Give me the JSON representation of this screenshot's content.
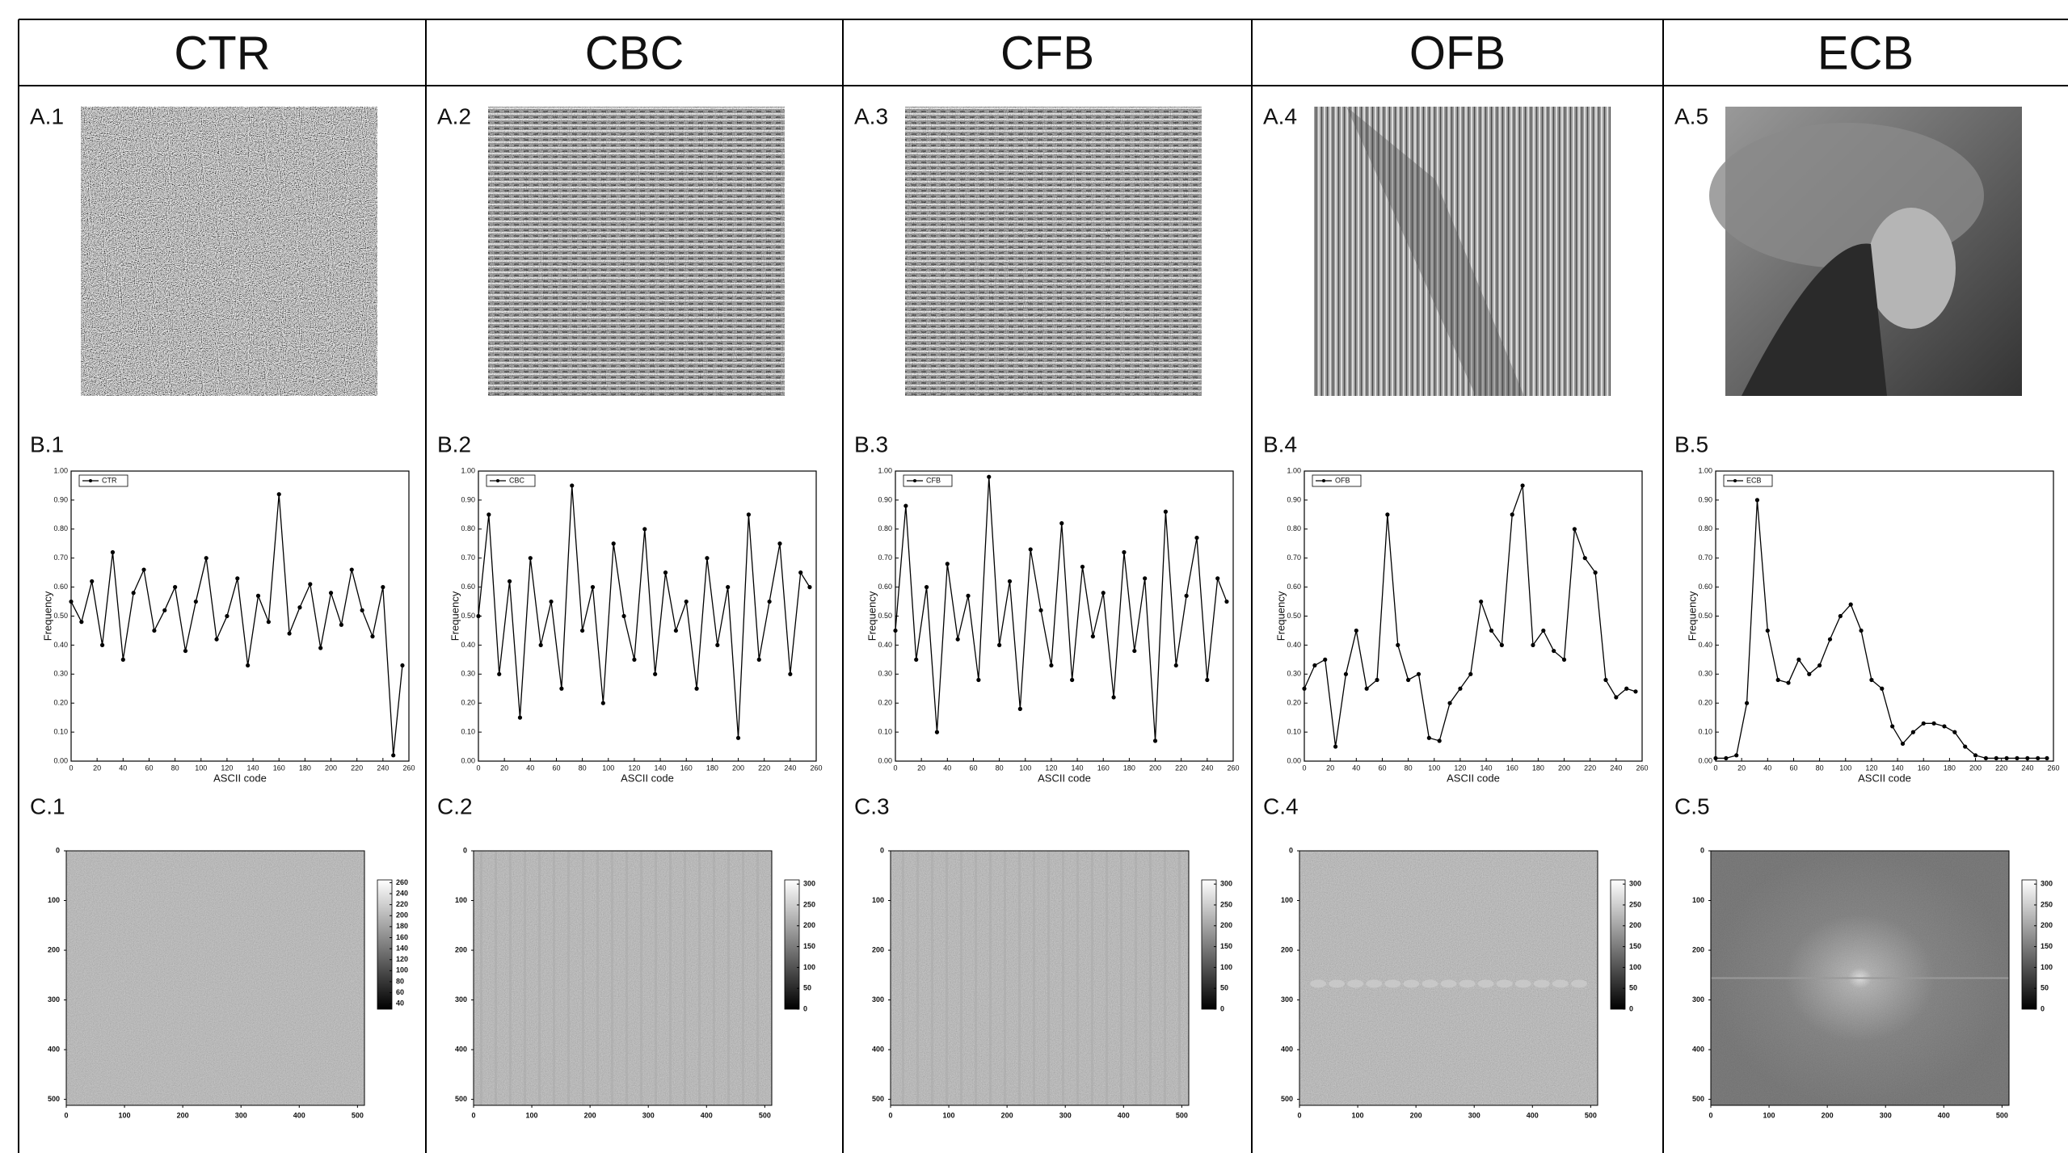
{
  "columns": [
    {
      "title": "CTR",
      "labels": [
        "A.1",
        "B.1",
        "C.1"
      ]
    },
    {
      "title": "CBC",
      "labels": [
        "A.2",
        "B.2",
        "C.2"
      ]
    },
    {
      "title": "CFB",
      "labels": [
        "A.3",
        "B.3",
        "C.3"
      ]
    },
    {
      "title": "OFB",
      "labels": [
        "A.4",
        "B.4",
        "C.4"
      ]
    },
    {
      "title": "ECB",
      "labels": [
        "A.5",
        "B.5",
        "C.5"
      ]
    }
  ],
  "chart_data": [
    {
      "type": "line",
      "xlabel": "ASCII code",
      "ylabel": "Frequency",
      "xlim": [
        0,
        260
      ],
      "ylim": [
        0,
        1
      ],
      "xticks": [
        0,
        20,
        40,
        60,
        80,
        100,
        120,
        140,
        160,
        180,
        200,
        220,
        240,
        260
      ],
      "yticks": [
        {
          "value": 0,
          "label": "0.00"
        },
        {
          "value": 0.1,
          "label": "0.10"
        },
        {
          "value": 0.2,
          "label": "0.20"
        },
        {
          "value": 0.3,
          "label": "0.30"
        },
        {
          "value": 0.4,
          "label": "0.40"
        },
        {
          "value": 0.5,
          "label": "0.50"
        },
        {
          "value": 0.6,
          "label": "0.60"
        },
        {
          "value": 0.7,
          "label": "0.70"
        },
        {
          "value": 0.8,
          "label": "0.80"
        },
        {
          "value": 0.9,
          "label": "0.90"
        },
        {
          "value": 1,
          "label": "1.00"
        }
      ],
      "x": [
        0,
        8,
        16,
        24,
        32,
        40,
        48,
        56,
        64,
        72,
        80,
        88,
        96,
        104,
        112,
        120,
        128,
        136,
        144,
        152,
        160,
        168,
        176,
        184,
        192,
        200,
        208,
        216,
        224,
        232,
        240,
        248,
        255
      ],
      "series": [
        {
          "name": "CTR",
          "color": "#000000",
          "values": [
            0.55,
            0.48,
            0.62,
            0.4,
            0.72,
            0.35,
            0.58,
            0.66,
            0.45,
            0.52,
            0.6,
            0.38,
            0.55,
            0.7,
            0.42,
            0.5,
            0.63,
            0.33,
            0.57,
            0.48,
            0.92,
            0.44,
            0.53,
            0.61,
            0.39,
            0.58,
            0.47,
            0.66,
            0.52,
            0.43,
            0.6,
            0.02,
            0.33
          ]
        }
      ]
    },
    {
      "type": "line",
      "xlabel": "ASCII code",
      "ylabel": "Frequency",
      "xlim": [
        0,
        260
      ],
      "ylim": [
        0,
        1
      ],
      "xticks": [
        0,
        20,
        40,
        60,
        80,
        100,
        120,
        140,
        160,
        180,
        200,
        220,
        240,
        260
      ],
      "yticks": [
        {
          "value": 0,
          "label": "0.00"
        },
        {
          "value": 0.1,
          "label": "0.10"
        },
        {
          "value": 0.2,
          "label": "0.20"
        },
        {
          "value": 0.3,
          "label": "0.30"
        },
        {
          "value": 0.4,
          "label": "0.40"
        },
        {
          "value": 0.5,
          "label": "0.50"
        },
        {
          "value": 0.6,
          "label": "0.60"
        },
        {
          "value": 0.7,
          "label": "0.70"
        },
        {
          "value": 0.8,
          "label": "0.80"
        },
        {
          "value": 0.9,
          "label": "0.90"
        },
        {
          "value": 1,
          "label": "1.00"
        }
      ],
      "x": [
        0,
        8,
        16,
        24,
        32,
        40,
        48,
        56,
        64,
        72,
        80,
        88,
        96,
        104,
        112,
        120,
        128,
        136,
        144,
        152,
        160,
        168,
        176,
        184,
        192,
        200,
        208,
        216,
        224,
        232,
        240,
        248,
        255
      ],
      "series": [
        {
          "name": "CBC",
          "color": "#000000",
          "values": [
            0.5,
            0.85,
            0.3,
            0.62,
            0.15,
            0.7,
            0.4,
            0.55,
            0.25,
            0.95,
            0.45,
            0.6,
            0.2,
            0.75,
            0.5,
            0.35,
            0.8,
            0.3,
            0.65,
            0.45,
            0.55,
            0.25,
            0.7,
            0.4,
            0.6,
            0.08,
            0.85,
            0.35,
            0.55,
            0.75,
            0.3,
            0.65,
            0.6
          ]
        }
      ]
    },
    {
      "type": "line",
      "xlabel": "ASCII code",
      "ylabel": "Frequency",
      "xlim": [
        0,
        260
      ],
      "ylim": [
        0,
        1
      ],
      "xticks": [
        0,
        20,
        40,
        60,
        80,
        100,
        120,
        140,
        160,
        180,
        200,
        220,
        240,
        260
      ],
      "yticks": [
        {
          "value": 0,
          "label": "0.00"
        },
        {
          "value": 0.1,
          "label": "0.10"
        },
        {
          "value": 0.2,
          "label": "0.20"
        },
        {
          "value": 0.3,
          "label": "0.30"
        },
        {
          "value": 0.4,
          "label": "0.40"
        },
        {
          "value": 0.5,
          "label": "0.50"
        },
        {
          "value": 0.6,
          "label": "0.60"
        },
        {
          "value": 0.7,
          "label": "0.70"
        },
        {
          "value": 0.8,
          "label": "0.80"
        },
        {
          "value": 0.9,
          "label": "0.90"
        },
        {
          "value": 1,
          "label": "1.00"
        }
      ],
      "x": [
        0,
        8,
        16,
        24,
        32,
        40,
        48,
        56,
        64,
        72,
        80,
        88,
        96,
        104,
        112,
        120,
        128,
        136,
        144,
        152,
        160,
        168,
        176,
        184,
        192,
        200,
        208,
        216,
        224,
        232,
        240,
        248,
        255
      ],
      "series": [
        {
          "name": "CFB",
          "color": "#000000",
          "values": [
            0.45,
            0.88,
            0.35,
            0.6,
            0.1,
            0.68,
            0.42,
            0.57,
            0.28,
            0.98,
            0.4,
            0.62,
            0.18,
            0.73,
            0.52,
            0.33,
            0.82,
            0.28,
            0.67,
            0.43,
            0.58,
            0.22,
            0.72,
            0.38,
            0.63,
            0.07,
            0.86,
            0.33,
            0.57,
            0.77,
            0.28,
            0.63,
            0.55
          ]
        }
      ]
    },
    {
      "type": "line",
      "xlabel": "ASCII code",
      "ylabel": "Frequency",
      "xlim": [
        0,
        260
      ],
      "ylim": [
        0,
        1
      ],
      "xticks": [
        0,
        20,
        40,
        60,
        80,
        100,
        120,
        140,
        160,
        180,
        200,
        220,
        240,
        260
      ],
      "yticks": [
        {
          "value": 0,
          "label": "0.00"
        },
        {
          "value": 0.1,
          "label": "0.10"
        },
        {
          "value": 0.2,
          "label": "0.20"
        },
        {
          "value": 0.3,
          "label": "0.30"
        },
        {
          "value": 0.4,
          "label": "0.40"
        },
        {
          "value": 0.5,
          "label": "0.50"
        },
        {
          "value": 0.6,
          "label": "0.60"
        },
        {
          "value": 0.7,
          "label": "0.70"
        },
        {
          "value": 0.8,
          "label": "0.80"
        },
        {
          "value": 0.9,
          "label": "0.90"
        },
        {
          "value": 1,
          "label": "1.00"
        }
      ],
      "x": [
        0,
        8,
        16,
        24,
        32,
        40,
        48,
        56,
        64,
        72,
        80,
        88,
        96,
        104,
        112,
        120,
        128,
        136,
        144,
        152,
        160,
        168,
        176,
        184,
        192,
        200,
        208,
        216,
        224,
        232,
        240,
        248,
        255
      ],
      "series": [
        {
          "name": "OFB",
          "color": "#000000",
          "values": [
            0.25,
            0.33,
            0.35,
            0.05,
            0.3,
            0.45,
            0.25,
            0.28,
            0.85,
            0.4,
            0.28,
            0.3,
            0.08,
            0.07,
            0.2,
            0.25,
            0.3,
            0.55,
            0.45,
            0.4,
            0.85,
            0.95,
            0.4,
            0.45,
            0.38,
            0.35,
            0.8,
            0.7,
            0.65,
            0.28,
            0.22,
            0.25,
            0.24
          ]
        }
      ]
    },
    {
      "type": "line",
      "xlabel": "ASCII code",
      "ylabel": "Frequency",
      "xlim": [
        0,
        260
      ],
      "ylim": [
        0,
        1
      ],
      "xticks": [
        0,
        20,
        40,
        60,
        80,
        100,
        120,
        140,
        160,
        180,
        200,
        220,
        240,
        260
      ],
      "yticks": [
        {
          "value": 0,
          "label": "0.00"
        },
        {
          "value": 0.1,
          "label": "0.10"
        },
        {
          "value": 0.2,
          "label": "0.20"
        },
        {
          "value": 0.3,
          "label": "0.30"
        },
        {
          "value": 0.4,
          "label": "0.40"
        },
        {
          "value": 0.5,
          "label": "0.50"
        },
        {
          "value": 0.6,
          "label": "0.60"
        },
        {
          "value": 0.7,
          "label": "0.70"
        },
        {
          "value": 0.8,
          "label": "0.80"
        },
        {
          "value": 0.9,
          "label": "0.90"
        },
        {
          "value": 1,
          "label": "1.00"
        }
      ],
      "x": [
        0,
        8,
        16,
        24,
        32,
        40,
        48,
        56,
        64,
        72,
        80,
        88,
        96,
        104,
        112,
        120,
        128,
        136,
        144,
        152,
        160,
        168,
        176,
        184,
        192,
        200,
        208,
        216,
        224,
        232,
        240,
        248,
        255
      ],
      "series": [
        {
          "name": "ECB",
          "color": "#000000",
          "values": [
            0.01,
            0.01,
            0.02,
            0.2,
            0.9,
            0.45,
            0.28,
            0.27,
            0.35,
            0.3,
            0.33,
            0.42,
            0.5,
            0.54,
            0.45,
            0.28,
            0.25,
            0.12,
            0.06,
            0.1,
            0.13,
            0.13,
            0.12,
            0.1,
            0.05,
            0.02,
            0.01,
            0.01,
            0.01,
            0.01,
            0.01,
            0.01,
            0.01
          ]
        }
      ]
    },
    {
      "type": "heatmap",
      "xlim": [
        0,
        512
      ],
      "ylim": [
        0,
        512
      ],
      "xticks": [
        0,
        100,
        200,
        300,
        400,
        500
      ],
      "yticks": [
        0,
        100,
        200,
        300,
        400,
        500
      ],
      "clim": [
        30,
        265
      ],
      "cticks": [
        40,
        60,
        80,
        100,
        120,
        140,
        160,
        180,
        200,
        220,
        240,
        260
      ]
    },
    {
      "type": "heatmap",
      "xlim": [
        0,
        512
      ],
      "ylim": [
        0,
        512
      ],
      "xticks": [
        0,
        100,
        200,
        300,
        400,
        500
      ],
      "yticks": [
        0,
        100,
        200,
        300,
        400,
        500
      ],
      "clim": [
        0,
        310
      ],
      "cticks": [
        0,
        50,
        100,
        150,
        200,
        250,
        300
      ]
    },
    {
      "type": "heatmap",
      "xlim": [
        0,
        512
      ],
      "ylim": [
        0,
        512
      ],
      "xticks": [
        0,
        100,
        200,
        300,
        400,
        500
      ],
      "yticks": [
        0,
        100,
        200,
        300,
        400,
        500
      ],
      "clim": [
        0,
        310
      ],
      "cticks": [
        0,
        50,
        100,
        150,
        200,
        250,
        300
      ]
    },
    {
      "type": "heatmap",
      "xlim": [
        0,
        512
      ],
      "ylim": [
        0,
        512
      ],
      "xticks": [
        0,
        100,
        200,
        300,
        400,
        500
      ],
      "yticks": [
        0,
        100,
        200,
        300,
        400,
        500
      ],
      "clim": [
        0,
        310
      ],
      "cticks": [
        0,
        50,
        100,
        150,
        200,
        250,
        300
      ]
    },
    {
      "type": "heatmap",
      "xlim": [
        0,
        512
      ],
      "ylim": [
        0,
        512
      ],
      "xticks": [
        0,
        100,
        200,
        300,
        400,
        500
      ],
      "yticks": [
        0,
        100,
        200,
        300,
        400,
        500
      ],
      "clim": [
        0,
        310
      ],
      "cticks": [
        0,
        50,
        100,
        150,
        200,
        250,
        300
      ]
    }
  ]
}
